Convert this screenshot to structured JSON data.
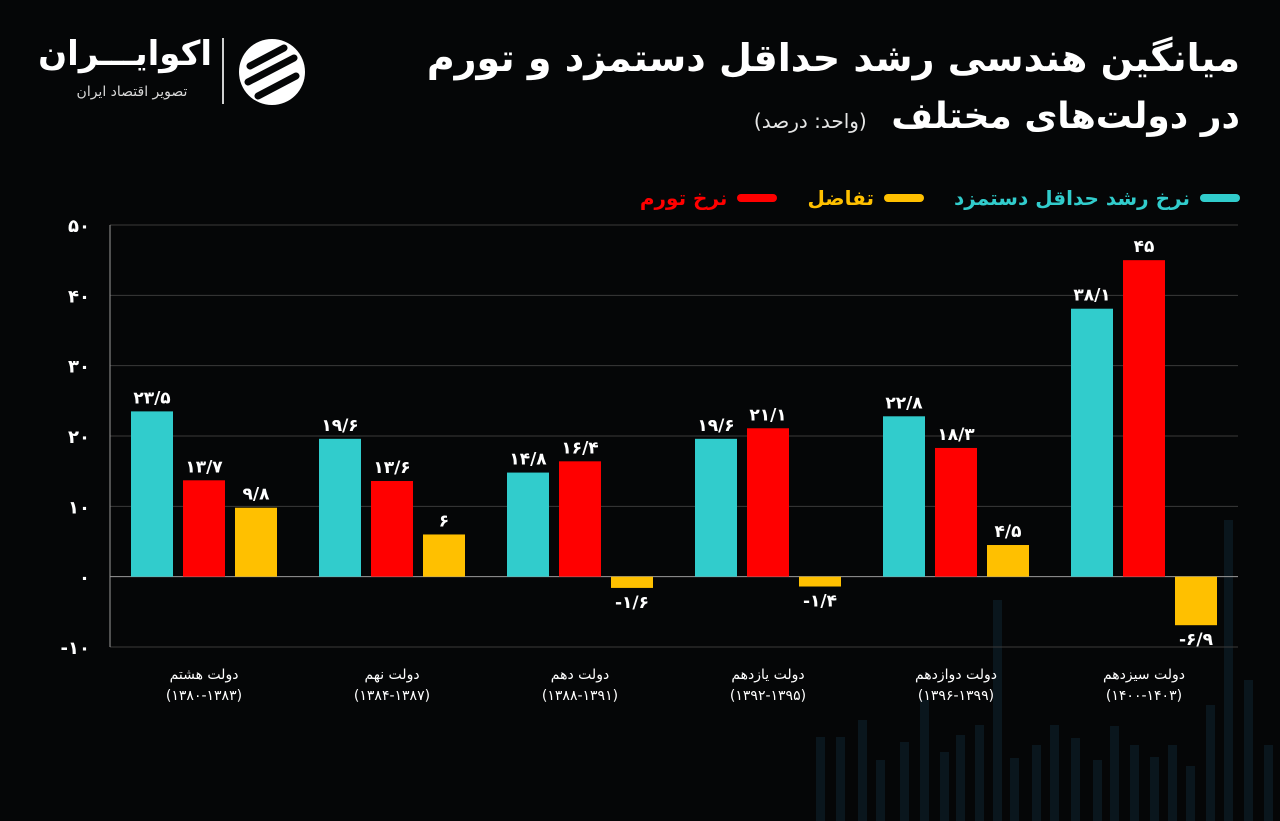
{
  "header": {
    "title_line1": "میانگین هندسی رشد حداقل دستمزد و تورم",
    "title_line2": "در دولت‌های مختلف",
    "unit": "(واحد: درصد)"
  },
  "logo": {
    "name": "اکوایـــران",
    "tagline": "تصویر اقتصاد ایران"
  },
  "colors": {
    "background": "#050607",
    "wage": "#31CCCC",
    "inflation": "#FF0000",
    "diff": "#FFC000"
  },
  "chart_data": {
    "type": "bar",
    "categories": [
      {
        "name": "دولت هشتم",
        "period": "(۱۳۸۰-۱۳۸۳)"
      },
      {
        "name": "دولت نهم",
        "period": "(۱۳۸۴-۱۳۸۷)"
      },
      {
        "name": "دولت دهم",
        "period": "(۱۳۸۸-۱۳۹۱)"
      },
      {
        "name": "دولت یازدهم",
        "period": "(۱۳۹۲-۱۳۹۵)"
      },
      {
        "name": "دولت دوازدهم",
        "period": "(۱۳۹۶-۱۳۹۹)"
      },
      {
        "name": "دولت سیزدهم",
        "period": "(۱۴۰۰-۱۴۰۳)"
      }
    ],
    "series": [
      {
        "name": "نرخ رشد حداقل دستمزد",
        "color": "#31CCCC",
        "values": [
          23.5,
          19.6,
          14.8,
          19.6,
          22.8,
          38.1
        ],
        "labels": [
          "۲۳/۵",
          "۱۹/۶",
          "۱۴/۸",
          "۱۹/۶",
          "۲۲/۸",
          "۳۸/۱"
        ]
      },
      {
        "name": "نرخ تورم",
        "color": "#FF0000",
        "values": [
          13.7,
          13.6,
          16.4,
          21.1,
          18.3,
          45
        ],
        "labels": [
          "۱۳/۷",
          "۱۳/۶",
          "۱۶/۴",
          "۲۱/۱",
          "۱۸/۳",
          "۴۵"
        ]
      },
      {
        "name": "تفاضل",
        "color": "#FFC000",
        "values": [
          9.8,
          6,
          -1.6,
          -1.4,
          4.5,
          -6.9
        ],
        "labels": [
          "۹/۸",
          "۶",
          "-۱/۶",
          "-۱/۴",
          "۴/۵",
          "-۶/۹"
        ]
      }
    ],
    "legend_order": [
      "نرخ رشد حداقل دستمزد",
      "تفاضل",
      "نرخ تورم"
    ],
    "legend_position": "top-right",
    "ylim": [
      -10,
      50
    ],
    "yticks": [
      -10,
      0,
      10,
      20,
      30,
      40,
      50
    ],
    "ytick_labels": [
      "-۱۰",
      "۰",
      "۱۰",
      "۲۰",
      "۳۰",
      "۴۰",
      "۵۰"
    ],
    "grid": true
  }
}
